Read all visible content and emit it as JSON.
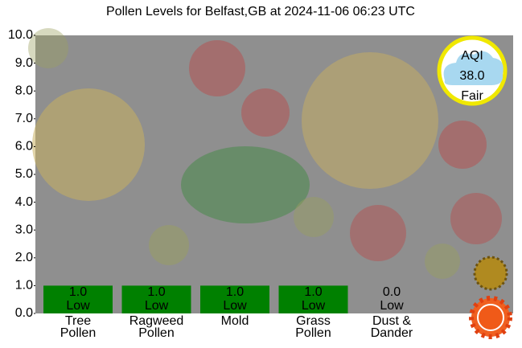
{
  "chart_data": {
    "type": "bar",
    "title": "Pollen Levels for Belfast,GB at 2024-11-06 06:23 UTC",
    "categories": [
      "Tree\nPollen",
      "Ragweed\nPollen",
      "Mold",
      "Grass\nPollen",
      "Dust &\nDander"
    ],
    "values": [
      1.0,
      1.0,
      1.0,
      1.0,
      0.0
    ],
    "value_labels": [
      "1.0",
      "1.0",
      "1.0",
      "1.0",
      "0.0"
    ],
    "levels": [
      "Low",
      "Low",
      "Low",
      "Low",
      "Low"
    ],
    "color": "#008000",
    "ylim": [
      0,
      10
    ],
    "yticks": [
      {
        "value": 0,
        "label": "0.0"
      },
      {
        "value": 1,
        "label": "1.0"
      },
      {
        "value": 2,
        "label": "2.0"
      },
      {
        "value": 3,
        "label": "3.0"
      },
      {
        "value": 4,
        "label": "4.0"
      },
      {
        "value": 5,
        "label": "5.0"
      },
      {
        "value": 6,
        "label": "6.0"
      },
      {
        "value": 7,
        "label": "7.0"
      },
      {
        "value": 8,
        "label": "8.0"
      },
      {
        "value": 9,
        "label": "9.0"
      },
      {
        "value": 10,
        "label": "10.0"
      }
    ],
    "aqi": {
      "label": "AQI",
      "value": 38.0,
      "value_label": "38.0",
      "category": "Fair"
    }
  }
}
